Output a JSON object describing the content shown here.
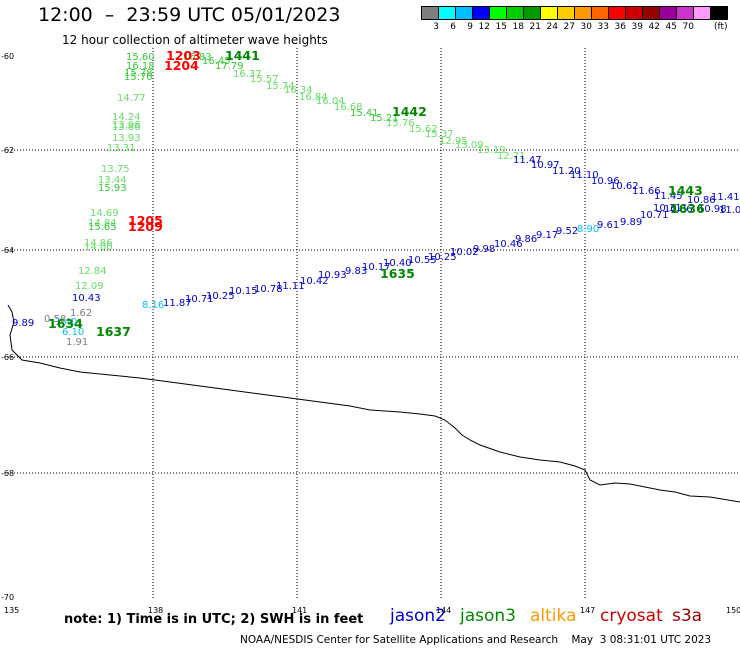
{
  "header": {
    "title": "12:00  –  23:59 UTC 05/01/2023",
    "subtitle": "12 hour collection of altimeter wave heights"
  },
  "colorbar": {
    "colors": [
      "#7f7f7f",
      "#00ffff",
      "#00bfff",
      "#0000ff",
      "#00ff00",
      "#00cc00",
      "#009900",
      "#ffff00",
      "#ffcc00",
      "#ff9900",
      "#ff6600",
      "#ff0000",
      "#cc0000",
      "#990000",
      "#990099",
      "#cc33cc",
      "#ff99ff",
      "#000000"
    ],
    "labels": [
      "3",
      "6",
      "9",
      "12",
      "15",
      "18",
      "21",
      "24",
      "27",
      "30",
      "33",
      "36",
      "39",
      "42",
      "45",
      "70"
    ],
    "unit": "(ft)"
  },
  "axes": {
    "lon_ticks": [
      "135",
      "138",
      "141",
      "144",
      "147",
      "150"
    ],
    "lat_ticks": [
      "-60",
      "-62",
      "-64",
      "-66",
      "-68",
      "-70"
    ]
  },
  "legend": {
    "note": "note: 1) Time is in UTC; 2) SWH is in feet",
    "items": [
      {
        "label": "jason2",
        "color": "#0000cc"
      },
      {
        "label": "jason3",
        "color": "#008800"
      },
      {
        "label": "altika",
        "color": "#ff9900"
      },
      {
        "label": "cryosat",
        "color": "#cc0000"
      },
      {
        "label": "s3a",
        "color": "#990000"
      }
    ]
  },
  "footer": "NOAA/NESDIS Center for Satellite Applications and Research    May  3 08:31:01 UTC 2023",
  "track_times": [
    {
      "text": "1441",
      "color": "#008800"
    },
    {
      "text": "1442",
      "color": "#008800"
    },
    {
      "text": "1443",
      "color": "#008800"
    },
    {
      "text": "1636",
      "color": "#008800"
    },
    {
      "text": "1635",
      "color": "#008800"
    },
    {
      "text": "1634",
      "color": "#008800"
    },
    {
      "text": "1637",
      "color": "#008800"
    },
    {
      "text": "1204",
      "color": "#ff0000"
    },
    {
      "text": "1203",
      "color": "#ff0000"
    },
    {
      "text": "1205",
      "color": "#ff0000"
    },
    {
      "text": "1209",
      "color": "#ff0000"
    }
  ],
  "swh_values": [
    {
      "text": "15.60",
      "color": "#33cc33"
    },
    {
      "text": "16.18",
      "color": "#33cc33"
    },
    {
      "text": "15.78",
      "color": "#33cc33"
    },
    {
      "text": "15.70",
      "color": "#33cc33"
    },
    {
      "text": "16.83",
      "color": "#33cc33"
    },
    {
      "text": "16.45",
      "color": "#33cc33"
    },
    {
      "text": "17.79",
      "color": "#33cc33"
    },
    {
      "text": "16.37",
      "color": "#66dd66"
    },
    {
      "text": "15.57",
      "color": "#66dd66"
    },
    {
      "text": "15.74",
      "color": "#66dd66"
    },
    {
      "text": "16.34",
      "color": "#66dd66"
    },
    {
      "text": "16.84",
      "color": "#66dd66"
    },
    {
      "text": "16.04",
      "color": "#66dd66"
    },
    {
      "text": "16.68",
      "color": "#66dd66"
    },
    {
      "text": "15.41",
      "color": "#33cc33"
    },
    {
      "text": "15.21",
      "color": "#33cc33"
    },
    {
      "text": "15.76",
      "color": "#66dd66"
    },
    {
      "text": "15.62",
      "color": "#66dd66"
    },
    {
      "text": "15.37",
      "color": "#66dd66"
    },
    {
      "text": "12.95",
      "color": "#66dd66"
    },
    {
      "text": "13.09",
      "color": "#66dd66"
    },
    {
      "text": "13.19",
      "color": "#66dd66"
    },
    {
      "text": "12.71",
      "color": "#66dd66"
    },
    {
      "text": "11.47",
      "color": "#0000cc"
    },
    {
      "text": "10.97",
      "color": "#0000cc"
    },
    {
      "text": "11.20",
      "color": "#0000cc"
    },
    {
      "text": "11.10",
      "color": "#0000cc"
    },
    {
      "text": "10.96",
      "color": "#0000cc"
    },
    {
      "text": "10.62",
      "color": "#0000cc"
    },
    {
      "text": "11.66",
      "color": "#0000cc"
    },
    {
      "text": "11.45",
      "color": "#0000cc"
    },
    {
      "text": "10.86",
      "color": "#0000cc"
    },
    {
      "text": "11.41",
      "color": "#0000cc"
    },
    {
      "text": "10.31",
      "color": "#0000cc"
    },
    {
      "text": "14.77",
      "color": "#66dd66"
    },
    {
      "text": "14.24",
      "color": "#66dd66"
    },
    {
      "text": "13.98",
      "color": "#66dd66"
    },
    {
      "text": "13.86",
      "color": "#66dd66"
    },
    {
      "text": "13.93",
      "color": "#66dd66"
    },
    {
      "text": "13.31",
      "color": "#66dd66"
    },
    {
      "text": "13.75",
      "color": "#66dd66"
    },
    {
      "text": "13.44",
      "color": "#66dd66"
    },
    {
      "text": "15.93",
      "color": "#33cc33"
    },
    {
      "text": "14.69",
      "color": "#66dd66"
    },
    {
      "text": "14.84",
      "color": "#66dd66"
    },
    {
      "text": "15.65",
      "color": "#33cc33"
    },
    {
      "text": "14.86",
      "color": "#66dd66"
    },
    {
      "text": "14.00",
      "color": "#66dd66"
    },
    {
      "text": "12.84",
      "color": "#66dd66"
    },
    {
      "text": "12.09",
      "color": "#66dd66"
    },
    {
      "text": "10.43",
      "color": "#0000cc"
    },
    {
      "text": "9.89",
      "color": "#0000cc"
    },
    {
      "text": "0.58",
      "color": "#7f7f7f"
    },
    {
      "text": "1.62",
      "color": "#7f7f7f"
    },
    {
      "text": "3.40",
      "color": "#00bfff"
    },
    {
      "text": "6.10",
      "color": "#00bfff"
    },
    {
      "text": "1.91",
      "color": "#7f7f7f"
    },
    {
      "text": "8.16",
      "color": "#00bfff"
    },
    {
      "text": "11.87",
      "color": "#0000cc"
    },
    {
      "text": "10.71",
      "color": "#0000cc"
    },
    {
      "text": "10.25",
      "color": "#0000cc"
    },
    {
      "text": "10.15",
      "color": "#0000cc"
    },
    {
      "text": "10.78",
      "color": "#0000cc"
    },
    {
      "text": "11.11",
      "color": "#0000cc"
    },
    {
      "text": "10.42",
      "color": "#0000cc"
    },
    {
      "text": "10.93",
      "color": "#0000cc"
    },
    {
      "text": "9.83",
      "color": "#0000cc"
    },
    {
      "text": "10.17",
      "color": "#0000cc"
    },
    {
      "text": "10.40",
      "color": "#0000cc"
    },
    {
      "text": "10.55",
      "color": "#0000cc"
    },
    {
      "text": "10.25",
      "color": "#0000cc"
    },
    {
      "text": "10.02",
      "color": "#0000cc"
    },
    {
      "text": "9.98",
      "color": "#0000cc"
    },
    {
      "text": "10.46",
      "color": "#0000cc"
    },
    {
      "text": "9.86",
      "color": "#0000cc"
    },
    {
      "text": "9.17",
      "color": "#0000cc"
    },
    {
      "text": "9.52",
      "color": "#0000cc"
    },
    {
      "text": "8.90",
      "color": "#00bfff"
    },
    {
      "text": "9.61",
      "color": "#0000cc"
    },
    {
      "text": "9.89",
      "color": "#0000cc"
    },
    {
      "text": "10.71",
      "color": "#0000cc"
    },
    {
      "text": "10.36",
      "color": "#0000cc"
    },
    {
      "text": "10.98",
      "color": "#0000cc"
    },
    {
      "text": "11.09",
      "color": "#0000cc"
    }
  ]
}
